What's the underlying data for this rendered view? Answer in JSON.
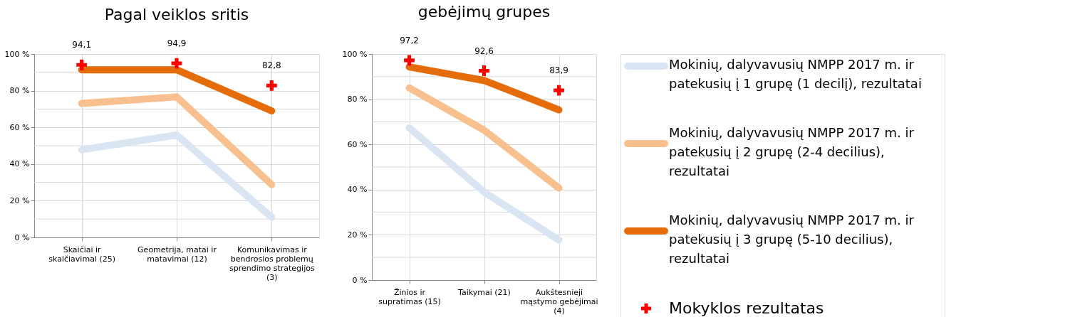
{
  "chart_data": [
    {
      "type": "line",
      "title": "Pagal veiklos sritis",
      "categories": [
        "Skaičiai ir skaičiavimai (25)",
        "Geometrija, matai ir matavimai (12)",
        "Komunikavimas ir bendrosios problemų sprendimo strategijos (3)"
      ],
      "series": [
        {
          "color": "#dae5f4",
          "values": [
            47.8,
            55.8,
            11
          ]
        },
        {
          "color": "#f9c08f",
          "values": [
            73.1,
            76.6,
            28.8
          ]
        },
        {
          "color": "#e46c0a",
          "values": [
            91.4,
            91.4,
            69
          ]
        },
        {
          "type": "scatter",
          "marker": "cross",
          "color": "#ff0000",
          "values": [
            94.1,
            94.9,
            82.8
          ],
          "value_labels": [
            "94,1",
            "94,9",
            "82,8"
          ]
        }
      ],
      "ylim": [
        0,
        100
      ],
      "yticks": [
        {
          "value": 0,
          "label": "0 %"
        },
        {
          "value": 10,
          "label": null
        },
        {
          "value": 20,
          "label": "20 %"
        },
        {
          "value": 30,
          "label": null
        },
        {
          "value": 40,
          "label": "40 %"
        },
        {
          "value": 50,
          "label": null
        },
        {
          "value": 60,
          "label": "60 %"
        },
        {
          "value": 70,
          "label": null
        },
        {
          "value": 80,
          "label": "80 %"
        },
        {
          "value": 90,
          "label": null
        },
        {
          "value": 100,
          "label": "100 %"
        }
      ],
      "grid": true
    },
    {
      "type": "line",
      "title": "gebėjimų grupes",
      "categories": [
        "Žinios ir supratimas (15)",
        "Taikymai (21)",
        "Aukštesnieji mąstymo gebėjimai (4)"
      ],
      "series": [
        {
          "name": "Mokinių, dalyvavusių NMPP 2017 m. ir patekusių į 1 grupę (1 decilį), rezultatai",
          "color": "#dae5f4",
          "values": [
            67.4,
            38.9,
            17.7
          ]
        },
        {
          "name": "Mokinių, dalyvavusių NMPP 2017 m. ir patekusių į 2 grupę (2-4 decilius), rezultatai",
          "color": "#f9c08f",
          "values": [
            85,
            66.3,
            40.7
          ]
        },
        {
          "name": "Mokinių, dalyvavusių NMPP 2017 m. ir patekusių į 3 grupę (5-10 decilius), rezultatai",
          "color": "#e46c0a",
          "values": [
            94.3,
            88.3,
            75.3
          ]
        },
        {
          "name": "Mokyklos rezultatas",
          "type": "scatter",
          "marker": "cross",
          "color": "#ff0000",
          "values": [
            97.2,
            92.6,
            83.9
          ],
          "value_labels": [
            "97,2",
            "92,6",
            "83,9"
          ]
        }
      ],
      "ylim": [
        0,
        100
      ],
      "yticks": [
        {
          "value": 0,
          "label": "0 %"
        },
        {
          "value": 10,
          "label": null
        },
        {
          "value": 20,
          "label": "20 %"
        },
        {
          "value": 30,
          "label": null
        },
        {
          "value": 40,
          "label": "40 %"
        },
        {
          "value": 50,
          "label": null
        },
        {
          "value": 60,
          "label": "60 %"
        },
        {
          "value": 70,
          "label": null
        },
        {
          "value": 80,
          "label": "80 %"
        },
        {
          "value": 90,
          "label": null
        },
        {
          "value": 100,
          "label": "100 %"
        }
      ],
      "grid": true,
      "legend": "right"
    }
  ]
}
